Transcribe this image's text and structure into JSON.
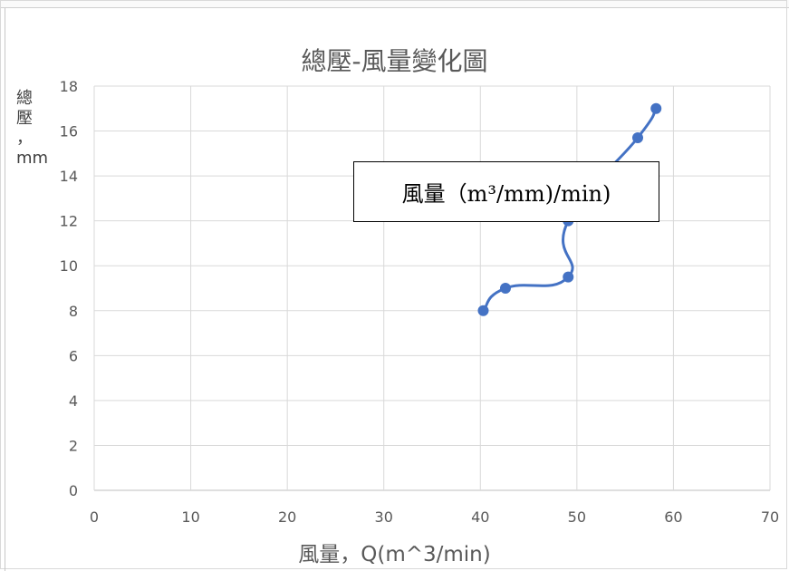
{
  "chart_data": {
    "type": "scatter",
    "title": "總壓-風量變化圖",
    "xlabel": "風量，Q(m^3/min)",
    "ylabel_lines": [
      "總",
      "壓",
      "，",
      "mm"
    ],
    "xlim": [
      0,
      70
    ],
    "ylim": [
      0,
      18
    ],
    "x_ticks": [
      "0",
      "10",
      "20",
      "30",
      "40",
      "50",
      "60",
      "70"
    ],
    "y_ticks": [
      "0",
      "2",
      "4",
      "6",
      "8",
      "10",
      "12",
      "14",
      "16",
      "18"
    ],
    "grid": true,
    "series": [
      {
        "x": [
          40.3,
          42.6,
          49.1,
          49.1,
          56.3,
          58.2
        ],
        "y": [
          8,
          9,
          9.5,
          12,
          15.7,
          17
        ],
        "color": "#4472c4",
        "smooth": true
      }
    ],
    "annotation": "風量（m³/mm)/min)"
  }
}
